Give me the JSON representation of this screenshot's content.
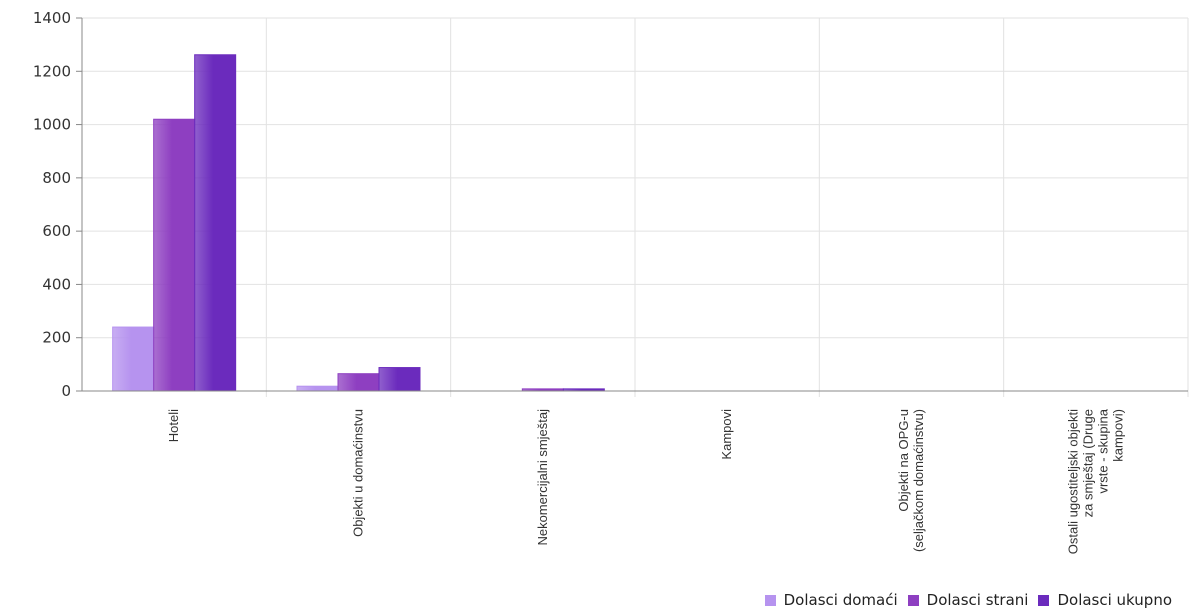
{
  "chart_data": {
    "type": "bar",
    "categories": [
      "Hoteli",
      "Objekti u domaćinstvu",
      "Nekomercijalni smještaj",
      "Kampovi",
      "Objekti na OPG-u\n(seljačkom domaćinstvu)",
      "Ostali ugostiteljski objekti\nza smještaj (Druge\nvrste - skupina\nkampovi)"
    ],
    "series": [
      {
        "name": "Dolasci domaći",
        "color": "#b693ef",
        "values": [
          240,
          18,
          0,
          0,
          0,
          0
        ]
      },
      {
        "name": "Dolasci strani",
        "color": "#8e3fc1",
        "values": [
          1020,
          65,
          8,
          0,
          0,
          0
        ]
      },
      {
        "name": "Dolasci ukupno",
        "color": "#6b2bbd",
        "values": [
          1262,
          88,
          8,
          0,
          0,
          0
        ]
      }
    ],
    "yticks": [
      "0",
      "200",
      "400",
      "600",
      "800",
      "1000",
      "1200",
      "1400"
    ],
    "ylim": [
      0,
      1400
    ],
    "grid": true,
    "legend_position": "bottom-right"
  }
}
